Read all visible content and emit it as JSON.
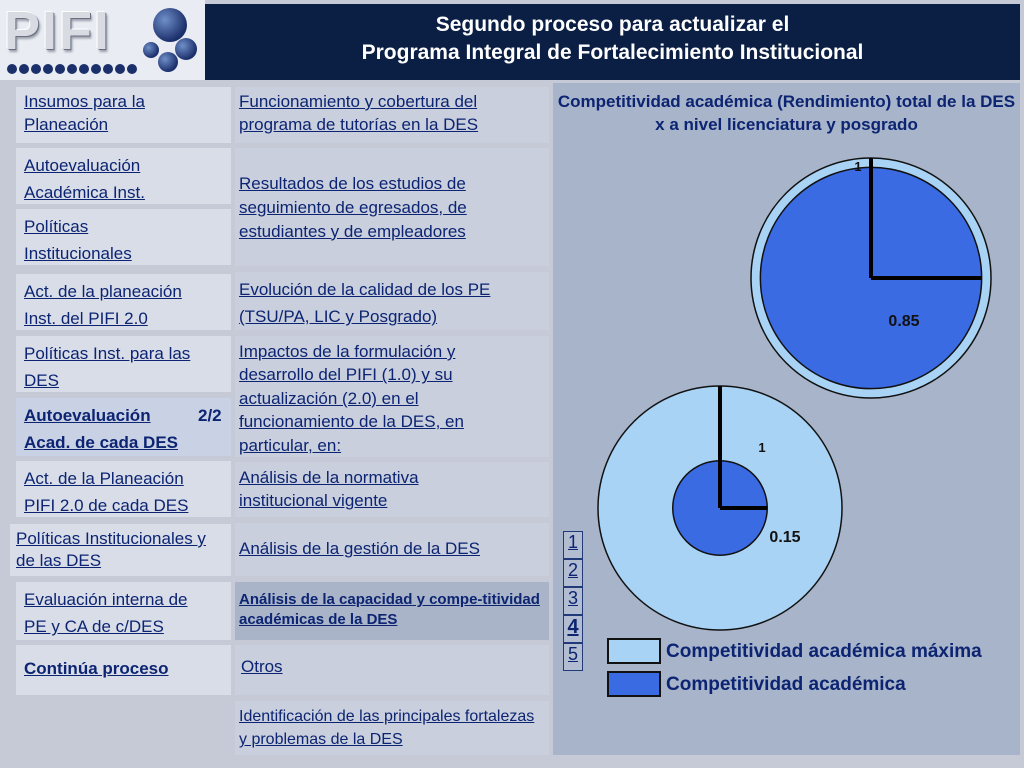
{
  "logo": {
    "text": "PIFI"
  },
  "header": {
    "line1": "Segundo proceso para actualizar el",
    "line2": "Programa Integral de Fortalecimiento Institucional"
  },
  "left_column": [
    {
      "label": "Insumos para la Planeación"
    },
    {
      "label": "Autoevaluación Académica Inst."
    },
    {
      "label": "Políticas Institucionales"
    },
    {
      "label": "Act. de la planeación Inst. del PIFI 2.0"
    },
    {
      "label": "Políticas Inst. para las DES"
    },
    {
      "label_a": "Autoevaluación",
      "label_b": "Acad. de cada DES",
      "page": "2/2"
    },
    {
      "label": "Act. de la Planeación PIFI 2.0 de cada DES"
    },
    {
      "label": "Políticas Institucionales y de las DES"
    },
    {
      "label": "Evaluación interna de PE y CA de c/DES"
    },
    {
      "label": "Continúa  proceso"
    }
  ],
  "middle_column": [
    {
      "label": "Funcionamiento y cobertura del programa de tutorías en la DES"
    },
    {
      "label": "Resultados de los estudios de seguimiento de egresados, de estudiantes y de empleadores"
    },
    {
      "label": "Evolución de la calidad de los PE (TSU/PA, LIC y Posgrado)"
    },
    {
      "label": "Impactos de la formulación y desarrollo del PIFI (1.0) y su actualización (2.0) en el funcionamiento de la DES, en particular, en:"
    },
    {
      "label": "Análisis de la normativa institucional vigente"
    },
    {
      "label": "Análisis de la gestión de la DES"
    },
    {
      "label": "Análisis de la capacidad y compe-titividad académicas de la DES"
    },
    {
      "label": "Otros"
    },
    {
      "label": "Identificación de las principales fortalezas y problemas de la DES"
    }
  ],
  "pager": [
    "1",
    "2",
    "3",
    "4",
    "5"
  ],
  "pager_active": "4",
  "colors": {
    "max": "#a9d3f5",
    "actual": "#3a6be3"
  },
  "chart_data": [
    {
      "type": "pie",
      "title": "Competitividad académica  (Rendimiento) total de la DES x a nivel licenciatura y posgrado",
      "series": [
        {
          "name": "Competitividad académica máxima",
          "value": 1,
          "label": "1"
        },
        {
          "name": "Competitividad académica",
          "value": 0.85,
          "label": "0.85"
        }
      ]
    },
    {
      "type": "pie",
      "series": [
        {
          "name": "Competitividad académica máxima",
          "value": 1,
          "label": "1"
        },
        {
          "name": "Competitividad académica",
          "value": 0.15,
          "label": "0.15"
        }
      ]
    }
  ],
  "legend": [
    {
      "label": "Competitividad académica máxima",
      "color": "#a9d3f5"
    },
    {
      "label": "Competitividad académica",
      "color": "#3a6be3"
    }
  ]
}
